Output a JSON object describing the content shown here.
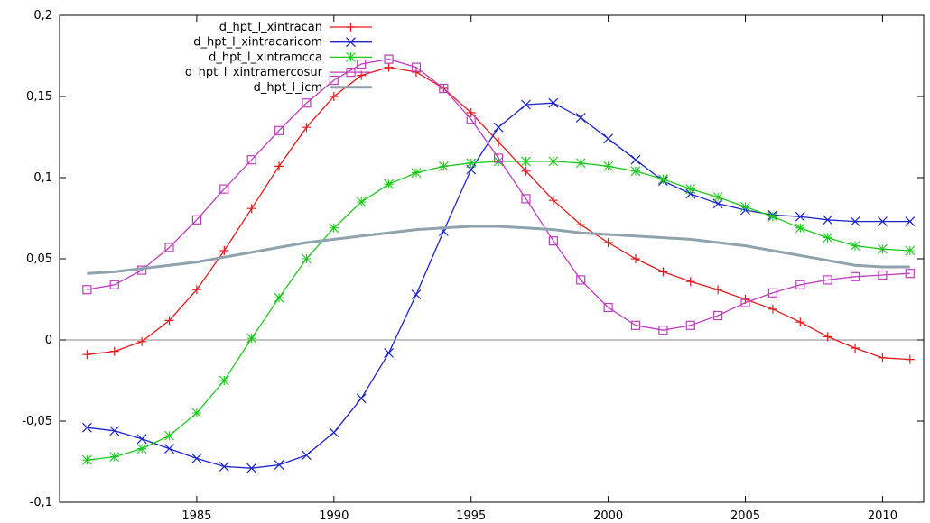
{
  "chart_data": {
    "type": "line",
    "title": "",
    "xlabel": "",
    "ylabel": "",
    "xlim": [
      1980,
      2011.5
    ],
    "ylim": [
      -0.1,
      0.2
    ],
    "x_ticks": [
      1985,
      1990,
      1995,
      2000,
      2005,
      2010
    ],
    "y_ticks": [
      -0.1,
      -0.05,
      0,
      0.05,
      0.1,
      0.15,
      0.2
    ],
    "y_tick_labels": [
      "-0,1",
      "-0,05",
      "0",
      "0,05",
      "0,1",
      "0,15",
      "0,2"
    ],
    "grid": false,
    "zero_line": true,
    "legend_position": "top-left",
    "x": [
      1981,
      1982,
      1983,
      1984,
      1985,
      1986,
      1987,
      1988,
      1989,
      1990,
      1991,
      1992,
      1993,
      1994,
      1995,
      1996,
      1997,
      1998,
      1999,
      2000,
      2001,
      2002,
      2003,
      2004,
      2005,
      2006,
      2007,
      2008,
      2009,
      2010,
      2011
    ],
    "series": [
      {
        "name": "d_hpt_l_xintracan",
        "color": "#e8191b",
        "marker": "plus",
        "values": [
          -0.009,
          -0.007,
          -0.001,
          0.012,
          0.031,
          0.055,
          0.081,
          0.107,
          0.131,
          0.15,
          0.163,
          0.168,
          0.165,
          0.155,
          0.14,
          0.122,
          0.104,
          0.086,
          0.071,
          0.06,
          0.05,
          0.042,
          0.036,
          0.031,
          0.025,
          0.019,
          0.011,
          0.002,
          -0.005,
          -0.011,
          -0.012
        ]
      },
      {
        "name": "d_hpt_l_xintracaricom",
        "color": "#1a24c8",
        "marker": "x",
        "values": [
          -0.054,
          -0.056,
          -0.061,
          -0.067,
          -0.073,
          -0.078,
          -0.079,
          -0.077,
          -0.071,
          -0.057,
          -0.036,
          -0.008,
          0.028,
          0.067,
          0.105,
          0.131,
          0.145,
          0.146,
          0.137,
          0.124,
          0.111,
          0.098,
          0.09,
          0.084,
          0.08,
          0.077,
          0.076,
          0.074,
          0.073,
          0.073,
          0.073
        ]
      },
      {
        "name": "d_hpt_l_xintramcca",
        "color": "#1ec81e",
        "marker": "star",
        "values": [
          -0.074,
          -0.072,
          -0.067,
          -0.059,
          -0.045,
          -0.025,
          0.001,
          0.026,
          0.05,
          0.069,
          0.085,
          0.096,
          0.103,
          0.107,
          0.109,
          0.11,
          0.11,
          0.11,
          0.109,
          0.107,
          0.104,
          0.099,
          0.093,
          0.088,
          0.082,
          0.076,
          0.069,
          0.063,
          0.058,
          0.056,
          0.055
        ]
      },
      {
        "name": "d_hpt_l_xintramercosur",
        "color": "#c03cc0",
        "marker": "square",
        "values": [
          0.031,
          0.034,
          0.043,
          0.057,
          0.074,
          0.093,
          0.111,
          0.129,
          0.146,
          0.16,
          0.17,
          0.173,
          0.168,
          0.155,
          0.136,
          0.112,
          0.087,
          0.061,
          0.037,
          0.02,
          0.009,
          0.006,
          0.009,
          0.015,
          0.023,
          0.029,
          0.034,
          0.037,
          0.039,
          0.04,
          0.041
        ]
      },
      {
        "name": "d_hpt_l_icm",
        "color": "#8fa3ae",
        "marker": "none",
        "values": [
          0.041,
          0.042,
          0.044,
          0.046,
          0.048,
          0.051,
          0.054,
          0.057,
          0.06,
          0.062,
          0.064,
          0.066,
          0.068,
          0.069,
          0.07,
          0.07,
          0.069,
          0.068,
          0.066,
          0.065,
          0.064,
          0.063,
          0.062,
          0.06,
          0.058,
          0.055,
          0.052,
          0.049,
          0.046,
          0.045,
          0.045
        ]
      }
    ]
  }
}
